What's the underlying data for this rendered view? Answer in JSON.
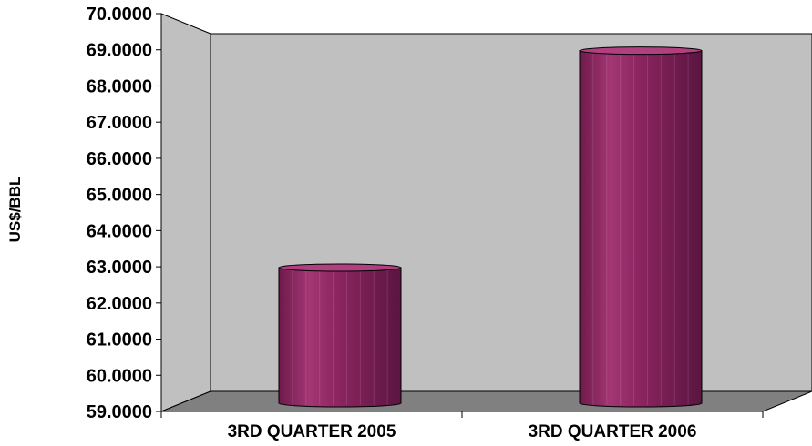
{
  "chart_data": {
    "type": "bar",
    "variant": "3d-cylinder",
    "categories": [
      "3RD QUARTER 2005",
      "3RD QUARTER 2006"
    ],
    "series": [
      {
        "values": [
          62.7,
          68.7
        ],
        "color": "#8b2460"
      }
    ],
    "ylabel": "US$/BBL",
    "xlabel": "",
    "title": "",
    "ylim": [
      59,
      70
    ],
    "yticks": [
      "59.0000",
      "60.0000",
      "61.0000",
      "62.0000",
      "63.0000",
      "64.0000",
      "65.0000",
      "66.0000",
      "67.0000",
      "68.0000",
      "69.0000",
      "70.0000"
    ],
    "grid": false,
    "legend": "none",
    "colors": {
      "wall": "#c0c0c0",
      "floor": "#808080",
      "bar": "#8b2460",
      "bar_dark": "#5e1640",
      "bar_light": "#b0407f"
    }
  }
}
